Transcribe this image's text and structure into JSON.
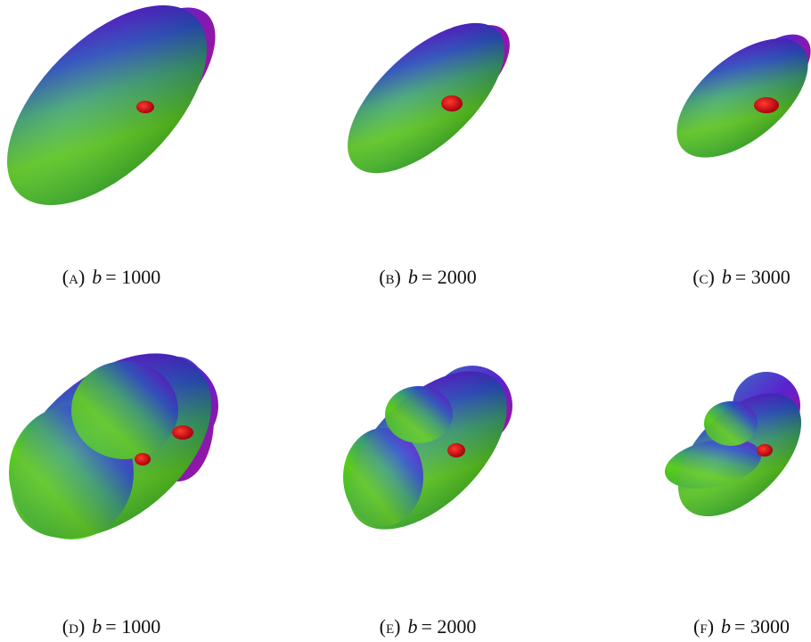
{
  "panels": [
    {
      "tag": "(a)",
      "variable": "b",
      "relation": "= 1000"
    },
    {
      "tag": "(b)",
      "variable": "b",
      "relation": "= 2000"
    },
    {
      "tag": "(c)",
      "variable": "b",
      "relation": "= 3000"
    },
    {
      "tag": "(d)",
      "variable": "b",
      "relation": "= 1000"
    },
    {
      "tag": "(e)",
      "variable": "b",
      "relation": "= 2000"
    },
    {
      "tag": "(f)",
      "variable": "b",
      "relation": "= 3000"
    }
  ]
}
